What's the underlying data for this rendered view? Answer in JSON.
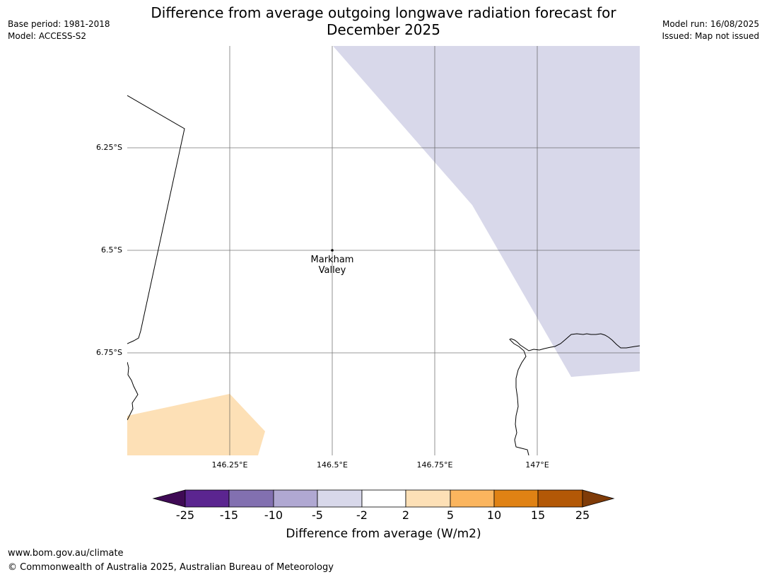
{
  "header": {
    "title_line1": "Difference from average outgoing longwave radiation forecast for",
    "title_line2": "December 2025",
    "base_period": "Base period: 1981-2018",
    "model": "Model: ACCESS-S2",
    "model_run": "Model run: 16/08/2025",
    "issued": "Issued: Map not issued"
  },
  "map": {
    "lat_labels": [
      "6.25°S",
      "6.5°S",
      "6.75°S"
    ],
    "lon_labels": [
      "146.25°E",
      "146.5°E",
      "146.75°E",
      "147°E"
    ],
    "place": {
      "name_line1": "Markham",
      "name_line2": "Valley",
      "lat": -6.5,
      "lon": 146.5
    },
    "fill_colors": {
      "-5 to -2": "#d8d8ea",
      "2 to 5": "#fde0b6"
    }
  },
  "colorbar": {
    "title": "Difference from average (W/m2)",
    "ticks": [
      "-25",
      "-15",
      "-10",
      "-5",
      "-2",
      "2",
      "5",
      "10",
      "15",
      "25"
    ],
    "colors": [
      "#3f0a55",
      "#5b2590",
      "#8270b0",
      "#b0a8d2",
      "#d8d8ea",
      "#ffffff",
      "#fde0b6",
      "#fbb55e",
      "#e08214",
      "#b35806",
      "#7f3b08"
    ]
  },
  "footer": {
    "url": "www.bom.gov.au/climate",
    "copyright": "© Commonwealth of Australia 2025, Australian Bureau of Meteorology"
  }
}
